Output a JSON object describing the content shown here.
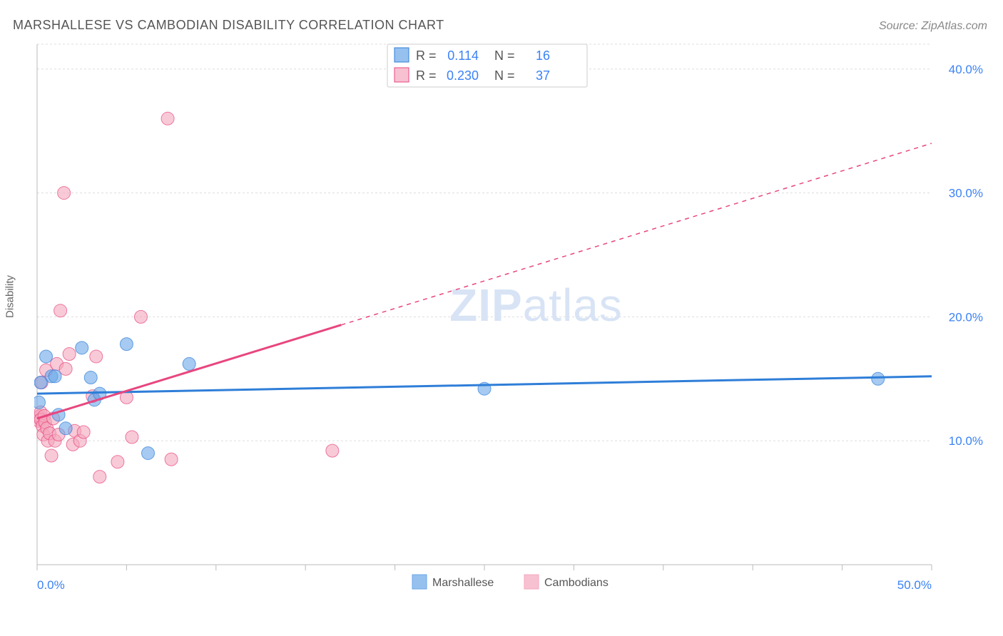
{
  "title": "MARSHALLESE VS CAMBODIAN DISABILITY CORRELATION CHART",
  "source": "Source: ZipAtlas.com",
  "ylabel": "Disability",
  "watermark": {
    "part1": "ZIP",
    "part2": "atlas"
  },
  "chart": {
    "type": "scatter",
    "background_color": "#ffffff",
    "grid_color": "#dddddd",
    "axis_color": "#bbbbbb",
    "xlim": [
      0,
      50
    ],
    "ylim": [
      0,
      42
    ],
    "x_ticks": [
      0,
      5,
      10,
      15,
      20,
      25,
      30,
      35,
      40,
      45,
      50
    ],
    "x_tick_labels": {
      "0": "0.0%",
      "50": "50.0%"
    },
    "y_ticks": [
      10,
      20,
      30,
      40
    ],
    "y_tick_labels": {
      "10": "10.0%",
      "20": "20.0%",
      "30": "30.0%",
      "40": "40.0%"
    },
    "marker_radius": 9,
    "marker_opacity": 0.6,
    "line_width": 3,
    "series": [
      {
        "name": "Marshallese",
        "color": "#6aa7e8",
        "line_color": "#2f7ed8",
        "R": "0.114",
        "N": "16",
        "trend": {
          "x1": 0,
          "y1": 13.8,
          "x2": 50,
          "y2": 15.2,
          "solid_until_x": 50
        },
        "points": [
          [
            0.1,
            13.1
          ],
          [
            0.2,
            14.7
          ],
          [
            0.5,
            16.8
          ],
          [
            0.8,
            15.2
          ],
          [
            1.0,
            15.2
          ],
          [
            1.2,
            12.1
          ],
          [
            1.6,
            11.0
          ],
          [
            2.5,
            17.5
          ],
          [
            3.0,
            15.1
          ],
          [
            3.2,
            13.3
          ],
          [
            3.5,
            13.8
          ],
          [
            5.0,
            17.8
          ],
          [
            6.2,
            9.0
          ],
          [
            8.5,
            16.2
          ],
          [
            25.0,
            14.2
          ],
          [
            47.0,
            15.0
          ]
        ]
      },
      {
        "name": "Cambodians",
        "color": "#f4a7bd",
        "line_color": "#e8467f",
        "R": "0.230",
        "N": "37",
        "trend": {
          "x1": 0,
          "y1": 11.8,
          "x2": 50,
          "y2": 34.0,
          "solid_until_x": 17
        },
        "points": [
          [
            0.1,
            11.6
          ],
          [
            0.1,
            11.9
          ],
          [
            0.15,
            12.0
          ],
          [
            0.2,
            12.3
          ],
          [
            0.2,
            11.7
          ],
          [
            0.25,
            14.7
          ],
          [
            0.3,
            11.2
          ],
          [
            0.35,
            10.5
          ],
          [
            0.4,
            12.0
          ],
          [
            0.45,
            11.5
          ],
          [
            0.5,
            15.7
          ],
          [
            0.55,
            11.0
          ],
          [
            0.6,
            10.0
          ],
          [
            0.7,
            10.6
          ],
          [
            0.8,
            8.8
          ],
          [
            0.9,
            11.8
          ],
          [
            1.0,
            10.0
          ],
          [
            1.1,
            16.2
          ],
          [
            1.2,
            10.5
          ],
          [
            1.3,
            20.5
          ],
          [
            1.5,
            30.0
          ],
          [
            1.6,
            15.8
          ],
          [
            1.8,
            17.0
          ],
          [
            2.0,
            9.7
          ],
          [
            2.1,
            10.8
          ],
          [
            2.4,
            10.0
          ],
          [
            2.6,
            10.7
          ],
          [
            3.1,
            13.6
          ],
          [
            3.3,
            16.8
          ],
          [
            3.5,
            7.1
          ],
          [
            4.5,
            8.3
          ],
          [
            5.0,
            13.5
          ],
          [
            5.3,
            10.3
          ],
          [
            5.8,
            20.0
          ],
          [
            7.3,
            36.0
          ],
          [
            7.5,
            8.5
          ],
          [
            16.5,
            9.2
          ]
        ]
      }
    ],
    "legend_bottom": [
      {
        "label": "Marshallese",
        "color": "#6aa7e8"
      },
      {
        "label": "Cambodians",
        "color": "#f4a7bd"
      }
    ]
  }
}
